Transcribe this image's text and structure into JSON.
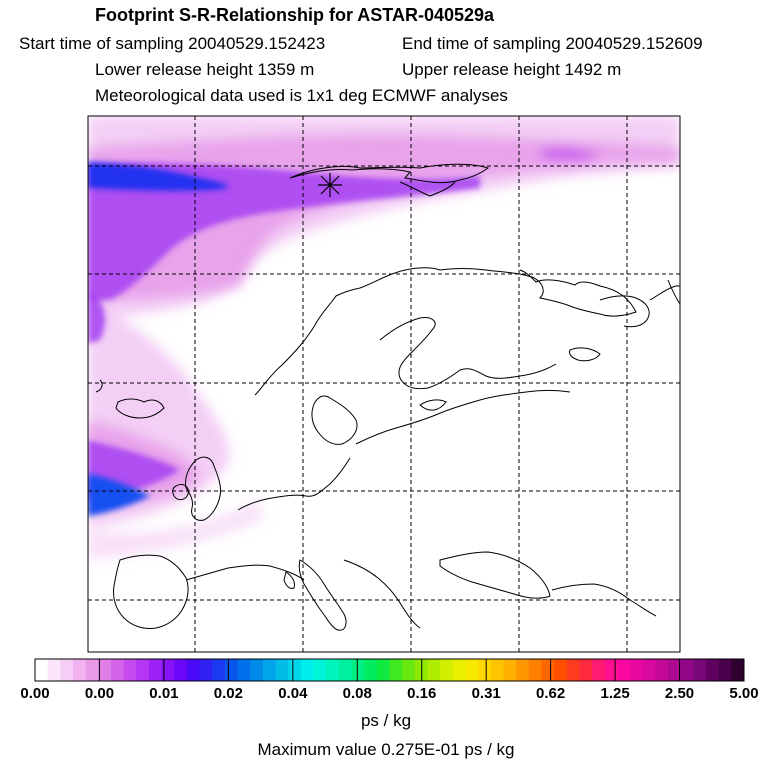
{
  "header": {
    "title": "Footprint S-R-Relationship for ASTAR-040529a",
    "start_time": "Start time of sampling 20040529.152423",
    "end_time": "End time of sampling 20040529.152609",
    "lower_height": "Lower release height 1359 m",
    "upper_height": "Upper release height 1492 m",
    "met_data": "Meteorological data used is 1x1 deg ECMWF analyses"
  },
  "colorbar": {
    "labels": [
      "0.00",
      "0.00",
      "0.01",
      "0.02",
      "0.04",
      "0.08",
      "0.16",
      "0.31",
      "0.62",
      "1.25",
      "2.50",
      "5.00"
    ],
    "colors": [
      "#ffffff",
      "#fbe6fb",
      "#f6cdf6",
      "#f0b2f0",
      "#e79be7",
      "#df7fe6",
      "#d364ea",
      "#c64bee",
      "#b435f2",
      "#9d22f5",
      "#8612f8",
      "#6b08fa",
      "#4c08f8",
      "#3020f4",
      "#1a3af0",
      "#0a55ec",
      "#0070ea",
      "#008ae8",
      "#00a4e8",
      "#00bde8",
      "#00d6ea",
      "#00eeee",
      "#00f4d8",
      "#00f4bd",
      "#00f0a0",
      "#00ee80",
      "#00ec60",
      "#10ea40",
      "#40e820",
      "#68e810",
      "#8ee800",
      "#b0ec00",
      "#d0f000",
      "#e8f000",
      "#f8e800",
      "#ffd800",
      "#ffc400",
      "#ffb000",
      "#ff9800",
      "#ff8000",
      "#ff6800",
      "#ff5000",
      "#ff3c20",
      "#ff2a40",
      "#ff1c70",
      "#ff1090",
      "#f808a0",
      "#e808a0",
      "#d808a0",
      "#c40898",
      "#ac0890",
      "#900888",
      "#780878",
      "#600060",
      "#4a004a",
      "#300030"
    ]
  },
  "units": "ps / kg",
  "max_value": "Maximum value  0.275E-01 ps / kg",
  "map": {
    "receptor_marker": "star-marker",
    "plume_color_strong": "#0000e6",
    "plume_color_mid": "#8f00ff",
    "plume_color_light": "#f0c8f5"
  }
}
